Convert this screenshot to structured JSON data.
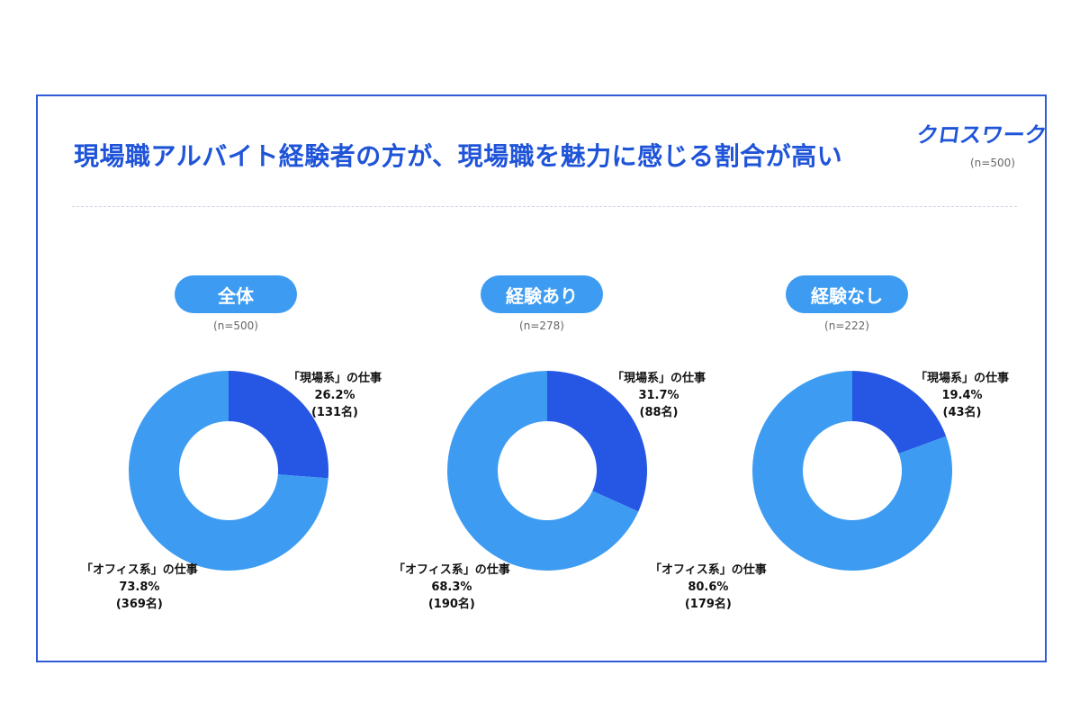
{
  "title": "現場職アルバイト経験者の方が、現場職を魅力に感じる割合が高い",
  "logo": "クロスワーク",
  "total_n": "(n=500)",
  "colors": {
    "frame": "#2f5bd8",
    "title": "#1f54d9",
    "pill": "#3d9cf2",
    "genba": "#2656e4",
    "office": "#3d9cf2"
  },
  "chart_data": [
    {
      "type": "pie",
      "group": "全体",
      "n_label": "(n=500)",
      "slices": [
        {
          "label_line1": "「現場系」の仕事",
          "percent_text": "26.2%",
          "count_text": "(131名)",
          "value": 26.2,
          "count": 131
        },
        {
          "label_line1": "「オフィス系」の仕事",
          "percent_text": "73.8%",
          "count_text": "(369名)",
          "value": 73.8,
          "count": 369
        }
      ]
    },
    {
      "type": "pie",
      "group": "経験あり",
      "n_label": "(n=278)",
      "slices": [
        {
          "label_line1": "「現場系」の仕事",
          "percent_text": "31.7%",
          "count_text": "(88名)",
          "value": 31.7,
          "count": 88
        },
        {
          "label_line1": "「オフィス系」の仕事",
          "percent_text": "68.3%",
          "count_text": "(190名)",
          "value": 68.3,
          "count": 190
        }
      ]
    },
    {
      "type": "pie",
      "group": "経験なし",
      "n_label": "(n=222)",
      "slices": [
        {
          "label_line1": "「現場系」の仕事",
          "percent_text": "19.4%",
          "count_text": "(43名)",
          "value": 19.4,
          "count": 43
        },
        {
          "label_line1": "「オフィス系」の仕事",
          "percent_text": "80.6%",
          "count_text": "(179名)",
          "value": 80.6,
          "count": 179
        }
      ]
    }
  ]
}
